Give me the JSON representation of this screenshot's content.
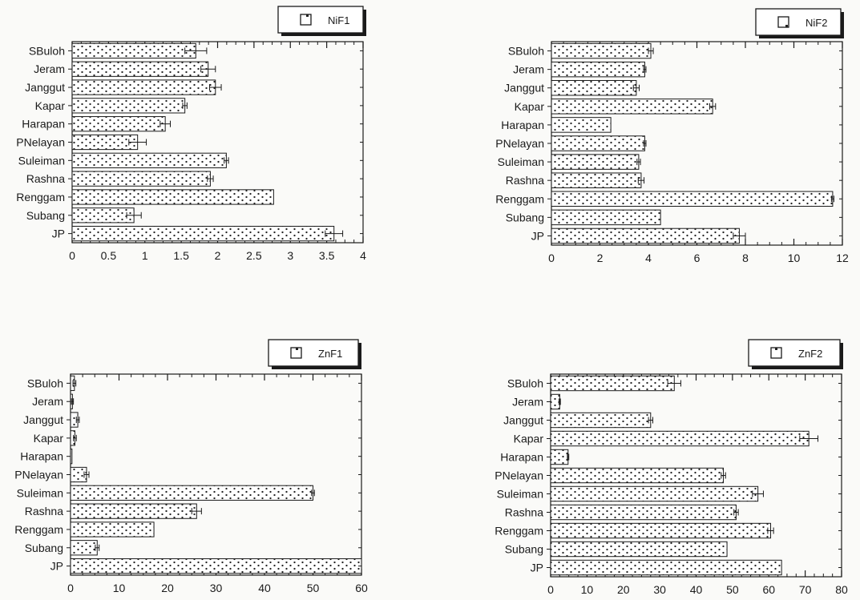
{
  "colors": {
    "ink": "#1a1a1a",
    "bar_fill": "#ffffff",
    "dot": "#222222",
    "background": "#fafaf8"
  },
  "chart_data": [
    {
      "type": "bar",
      "orientation": "horizontal",
      "pattern": "dotted",
      "legend": [
        "NiF1"
      ],
      "legend_position": "top-right",
      "categories": [
        "SBuloh",
        "Jeram",
        "Janggut",
        "Kapar",
        "Harapan",
        "PNelayan",
        "Suleiman",
        "Rashna",
        "Renggam",
        "Subang",
        "JP"
      ],
      "series": [
        {
          "name": "NiF1",
          "values": [
            1.7,
            1.87,
            1.97,
            1.55,
            1.28,
            0.9,
            2.12,
            1.9,
            2.77,
            0.85,
            3.6
          ],
          "errors": [
            0.15,
            0.1,
            0.08,
            0.03,
            0.07,
            0.12,
            0.03,
            0.04,
            0.0,
            0.1,
            0.12
          ]
        }
      ],
      "xlim": [
        0,
        4
      ],
      "xticks": [
        0,
        0.5,
        1,
        1.5,
        2,
        2.5,
        3,
        3.5,
        4
      ],
      "xtick_labels": [
        "0",
        "0.5",
        "1",
        "1.5",
        "2",
        "2.5",
        "3",
        "3.5",
        "4"
      ],
      "xlabel": "",
      "ylabel": "",
      "grid": false
    },
    {
      "type": "bar",
      "orientation": "horizontal",
      "pattern": "dotted",
      "legend": [
        "NiF2"
      ],
      "legend_position": "top-right",
      "categories": [
        "SBuloh",
        "Jeram",
        "Janggut",
        "Kapar",
        "Harapan",
        "PNelayan",
        "Suleiman",
        "Rashna",
        "Renggam",
        "Subang",
        "JP"
      ],
      "series": [
        {
          "name": "NiF2",
          "values": [
            4.1,
            3.85,
            3.5,
            6.65,
            2.45,
            3.85,
            3.6,
            3.7,
            11.6,
            4.5,
            7.75
          ],
          "errors": [
            0.1,
            0.05,
            0.12,
            0.12,
            0.0,
            0.05,
            0.07,
            0.12,
            0.05,
            0.0,
            0.25
          ]
        }
      ],
      "xlim": [
        0,
        12
      ],
      "xticks": [
        0,
        2,
        4,
        6,
        8,
        10,
        12
      ],
      "xtick_labels": [
        "0",
        "2",
        "4",
        "6",
        "8",
        "10",
        "12"
      ],
      "xlabel": "",
      "ylabel": "",
      "grid": false
    },
    {
      "type": "bar",
      "orientation": "horizontal",
      "pattern": "dotted",
      "legend": [
        "ZnF1"
      ],
      "legend_position": "top-right",
      "categories": [
        "SBuloh",
        "Jeram",
        "Janggut",
        "Kapar",
        "Harapan",
        "PNelayan",
        "Suleiman",
        "Rashna",
        "Renggam",
        "Subang",
        "JP"
      ],
      "series": [
        {
          "name": "ZnF1",
          "values": [
            0.8,
            0.4,
            1.5,
            0.9,
            0.3,
            3.3,
            50,
            26,
            17.2,
            5.5,
            60
          ],
          "errors": [
            0.3,
            0.2,
            0.3,
            0.3,
            0.0,
            0.5,
            0.3,
            1.0,
            0.0,
            0.4,
            0.0
          ]
        }
      ],
      "xlim": [
        0,
        60
      ],
      "xticks": [
        0,
        10,
        20,
        30,
        40,
        50,
        60
      ],
      "xtick_labels": [
        "0",
        "10",
        "20",
        "30",
        "40",
        "50",
        "60"
      ],
      "xlabel": "",
      "ylabel": "",
      "grid": false
    },
    {
      "type": "bar",
      "orientation": "horizontal",
      "pattern": "dotted",
      "legend": [
        "ZnF2"
      ],
      "legend_position": "top-right",
      "categories": [
        "SBuloh",
        "Jeram",
        "Janggut",
        "Kapar",
        "Harapan",
        "PNelayan",
        "Suleiman",
        "Rashna",
        "Renggam",
        "Subang",
        "JP"
      ],
      "series": [
        {
          "name": "ZnF2",
          "values": [
            34,
            2.5,
            27.5,
            71,
            4.8,
            47.5,
            57,
            51,
            60.5,
            48.5,
            63.5
          ],
          "errors": [
            1.8,
            0.2,
            0.6,
            2.5,
            0.2,
            0.6,
            1.5,
            0.6,
            0.8,
            0.0,
            0.0
          ]
        }
      ],
      "xlim": [
        0,
        80
      ],
      "xticks": [
        0,
        10,
        20,
        30,
        40,
        50,
        60,
        70,
        80
      ],
      "xtick_labels": [
        "0",
        "10",
        "20",
        "30",
        "40",
        "50",
        "60",
        "70",
        "80"
      ],
      "xlabel": "",
      "ylabel": "",
      "grid": false
    }
  ]
}
